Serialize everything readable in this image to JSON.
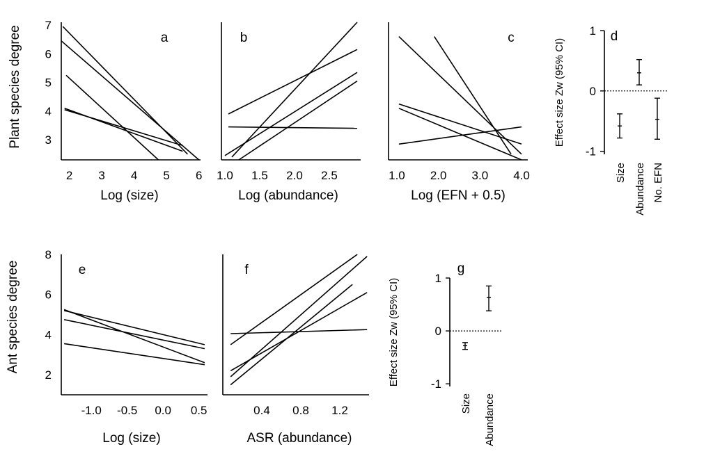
{
  "chart_data": [
    {
      "panel": "a",
      "type": "line",
      "xlabel": "Log (size)",
      "ylabel": "Plant species degree",
      "xticks": [
        "2",
        "3",
        "4",
        "5",
        "6"
      ],
      "yticks": [
        "3",
        "4",
        "5",
        "6",
        "7"
      ],
      "xlim": [
        1.75,
        6.05
      ],
      "ylim": [
        2.3,
        7.1
      ],
      "series": [
        {
          "x": [
            1.8,
            5.65
          ],
          "y": [
            6.95,
            2.5
          ]
        },
        {
          "x": [
            1.75,
            6.0
          ],
          "y": [
            6.45,
            2.3
          ]
        },
        {
          "x": [
            1.9,
            4.75
          ],
          "y": [
            5.25,
            2.3
          ]
        },
        {
          "x": [
            1.85,
            5.5
          ],
          "y": [
            4.1,
            2.6
          ]
        },
        {
          "x": [
            1.85,
            5.5
          ],
          "y": [
            4.05,
            2.8
          ]
        }
      ]
    },
    {
      "panel": "b",
      "type": "line",
      "xlabel": "Log (abundance)",
      "ylabel": "",
      "xticks": [
        "1.0",
        "1.5",
        "2.0",
        "2.5"
      ],
      "yticks": [],
      "xlim": [
        0.95,
        2.95
      ],
      "ylim": [
        2.3,
        7.1
      ],
      "series": [
        {
          "x": [
            1.05,
            2.9
          ],
          "y": [
            3.9,
            6.15
          ]
        },
        {
          "x": [
            1.1,
            2.9
          ],
          "y": [
            2.4,
            7.1
          ]
        },
        {
          "x": [
            1.0,
            2.9
          ],
          "y": [
            2.45,
            5.35
          ]
        },
        {
          "x": [
            1.2,
            2.9
          ],
          "y": [
            2.3,
            5.05
          ]
        },
        {
          "x": [
            1.05,
            2.9
          ],
          "y": [
            3.45,
            3.4
          ]
        }
      ]
    },
    {
      "panel": "c",
      "type": "line",
      "xlabel": "Log (EFN + 0.5)",
      "ylabel": "",
      "xticks": [
        "1.0",
        "2.0",
        "3.0",
        "4.0"
      ],
      "yticks": [],
      "xlim": [
        0.8,
        4.15
      ],
      "ylim": [
        2.3,
        7.1
      ],
      "series": [
        {
          "x": [
            1.05,
            4.0
          ],
          "y": [
            6.6,
            2.5
          ]
        },
        {
          "x": [
            1.9,
            3.75
          ],
          "y": [
            6.6,
            2.5
          ]
        },
        {
          "x": [
            1.05,
            4.0
          ],
          "y": [
            4.25,
            2.85
          ]
        },
        {
          "x": [
            1.05,
            4.0
          ],
          "y": [
            4.1,
            2.3
          ]
        },
        {
          "x": [
            1.05,
            4.0
          ],
          "y": [
            2.85,
            3.45
          ]
        }
      ]
    },
    {
      "panel": "d",
      "type": "scatter",
      "ylabel": "Effect size Zw (95% CI)",
      "categories": [
        "Size",
        "Abundance",
        "No. EFN"
      ],
      "yticks": [
        "-1",
        "0",
        "1"
      ],
      "ylim": [
        -1.05,
        1.0
      ],
      "values": [
        -0.58,
        0.3,
        -0.47
      ],
      "ci_low": [
        -0.78,
        0.1,
        -0.8
      ],
      "ci_high": [
        -0.38,
        0.52,
        -0.12
      ]
    },
    {
      "panel": "e",
      "type": "line",
      "xlabel": "Log (size)",
      "ylabel": "Ant species degree",
      "xticks": [
        "-1.0",
        "-0.5",
        "0.0",
        "0.5"
      ],
      "yticks": [
        "2",
        "4",
        "6",
        "8"
      ],
      "xlim": [
        -1.42,
        0.62
      ],
      "ylim": [
        1.0,
        8.0
      ],
      "series": [
        {
          "x": [
            -1.38,
            0.58
          ],
          "y": [
            5.25,
            2.6
          ]
        },
        {
          "x": [
            -1.38,
            0.58
          ],
          "y": [
            5.2,
            3.5
          ]
        },
        {
          "x": [
            -1.38,
            0.58
          ],
          "y": [
            4.75,
            3.3
          ]
        },
        {
          "x": [
            -1.38,
            0.58
          ],
          "y": [
            3.55,
            2.5
          ]
        }
      ]
    },
    {
      "panel": "f",
      "type": "line",
      "xlabel": "ASR (abundance)",
      "ylabel": "",
      "xticks": [
        "0.4",
        "0.8",
        "1.2"
      ],
      "yticks": [],
      "xlim": [
        0.0,
        1.5
      ],
      "ylim": [
        1.0,
        8.0
      ],
      "series": [
        {
          "x": [
            0.08,
            1.38
          ],
          "y": [
            3.5,
            8.0
          ]
        },
        {
          "x": [
            0.08,
            1.48
          ],
          "y": [
            1.9,
            7.9
          ]
        },
        {
          "x": [
            0.08,
            1.33
          ],
          "y": [
            1.5,
            6.5
          ]
        },
        {
          "x": [
            0.08,
            1.48
          ],
          "y": [
            2.2,
            6.1
          ]
        },
        {
          "x": [
            0.08,
            1.48
          ],
          "y": [
            4.05,
            4.25
          ]
        }
      ]
    },
    {
      "panel": "g",
      "type": "scatter",
      "ylabel": "Effect size Zw (95% CI)",
      "categories": [
        "Size",
        "Abundance"
      ],
      "yticks": [
        "-1",
        "0",
        "1"
      ],
      "ylim": [
        -1.05,
        1.0
      ],
      "values": [
        -0.28,
        0.63
      ],
      "ci_low": [
        -0.35,
        0.38
      ],
      "ci_high": [
        -0.22,
        0.85
      ]
    }
  ]
}
